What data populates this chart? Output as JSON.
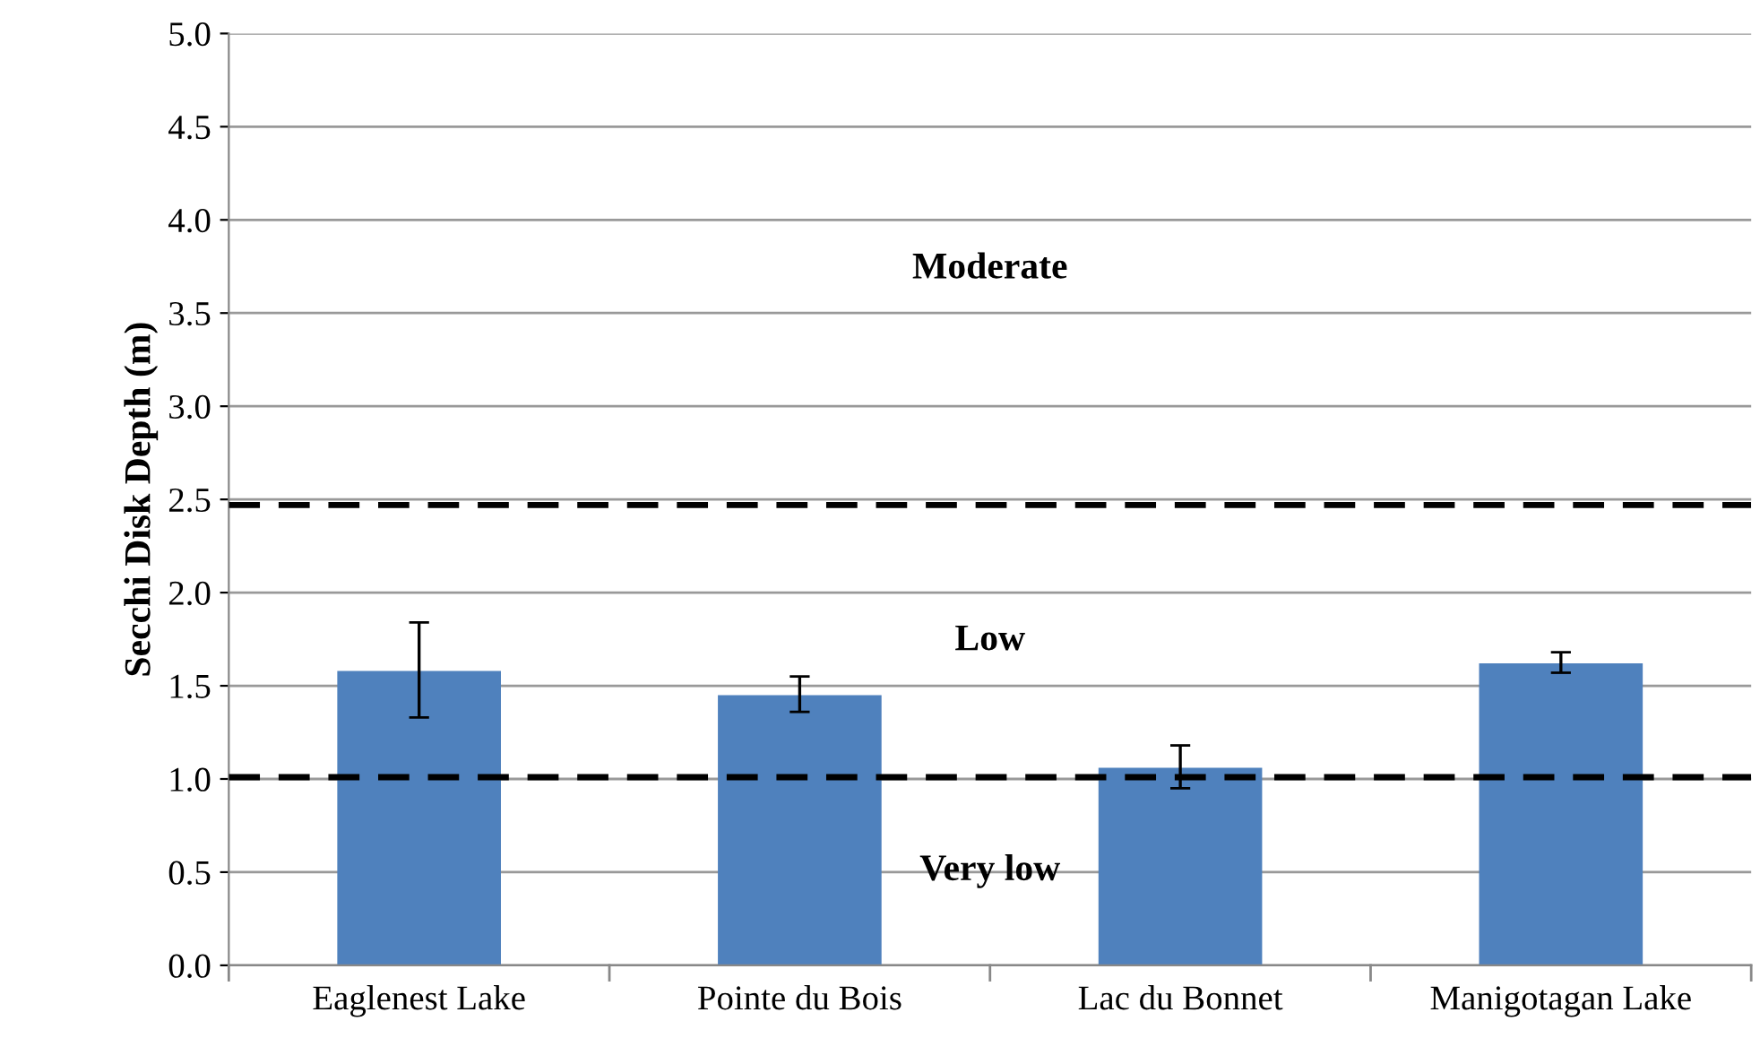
{
  "chart_data": {
    "type": "bar",
    "ylabel": "Secchi Disk Depth (m)",
    "categories": [
      "Eaglenest Lake",
      "Pointe du Bois",
      "Lac du Bonnet",
      "Manigotagan Lake"
    ],
    "values": [
      1.58,
      1.45,
      1.06,
      1.62
    ],
    "errors": [
      [
        1.33,
        1.84
      ],
      [
        1.36,
        1.55
      ],
      [
        0.95,
        1.18
      ],
      [
        1.57,
        1.68
      ]
    ],
    "color": "#4f81bd",
    "ylim": [
      0,
      5
    ],
    "yticks": [
      {
        "value": 0,
        "label": "0.0"
      },
      {
        "value": 0.5,
        "label": "0.5"
      },
      {
        "value": 1,
        "label": "1.0"
      },
      {
        "value": 1.5,
        "label": "1.5"
      },
      {
        "value": 2,
        "label": "2.0"
      },
      {
        "value": 2.5,
        "label": "2.5"
      },
      {
        "value": 3,
        "label": "3.0"
      },
      {
        "value": 3.5,
        "label": "3.5"
      },
      {
        "value": 4,
        "label": "4.0"
      },
      {
        "value": 4.5,
        "label": "4.5"
      },
      {
        "value": 5,
        "label": "5.0"
      }
    ],
    "grid": "y",
    "ref_lines": [
      {
        "axis": "y",
        "value": 2.47,
        "color": "#000000",
        "line_style": "dashed"
      },
      {
        "axis": "y",
        "value": 1.01,
        "color": "#000000",
        "line_style": "dashed"
      }
    ],
    "annotations": [
      "Moderate",
      "Low",
      "Very low"
    ]
  }
}
